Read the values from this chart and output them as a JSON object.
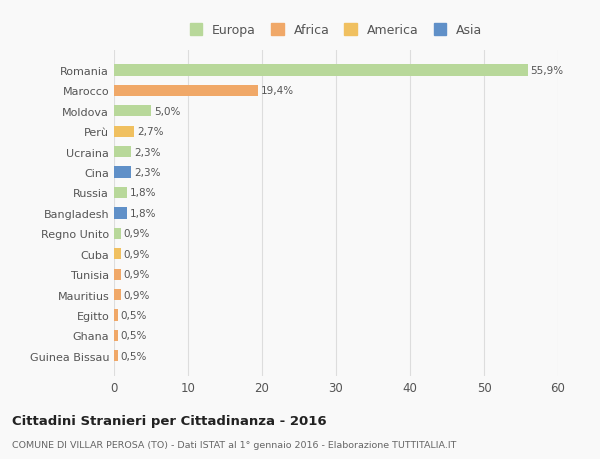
{
  "categories": [
    "Romania",
    "Marocco",
    "Moldova",
    "Perù",
    "Ucraina",
    "Cina",
    "Russia",
    "Bangladesh",
    "Regno Unito",
    "Cuba",
    "Tunisia",
    "Mauritius",
    "Egitto",
    "Ghana",
    "Guinea Bissau"
  ],
  "values": [
    55.9,
    19.4,
    5.0,
    2.7,
    2.3,
    2.3,
    1.8,
    1.8,
    0.9,
    0.9,
    0.9,
    0.9,
    0.5,
    0.5,
    0.5
  ],
  "labels": [
    "55,9%",
    "19,4%",
    "5,0%",
    "2,7%",
    "2,3%",
    "2,3%",
    "1,8%",
    "1,8%",
    "0,9%",
    "0,9%",
    "0,9%",
    "0,9%",
    "0,5%",
    "0,5%",
    "0,5%"
  ],
  "colors": [
    "#b8d89a",
    "#f0a868",
    "#b8d89a",
    "#f0c060",
    "#b8d89a",
    "#6090c8",
    "#b8d89a",
    "#6090c8",
    "#b8d89a",
    "#f0c060",
    "#f0a868",
    "#f0a868",
    "#f0a868",
    "#f0a868",
    "#f0a868"
  ],
  "legend": [
    {
      "label": "Europa",
      "color": "#b8d89a"
    },
    {
      "label": "Africa",
      "color": "#f0a868"
    },
    {
      "label": "America",
      "color": "#f0c060"
    },
    {
      "label": "Asia",
      "color": "#6090c8"
    }
  ],
  "title": "Cittadini Stranieri per Cittadinanza - 2016",
  "subtitle": "COMUNE DI VILLAR PEROSA (TO) - Dati ISTAT al 1° gennaio 2016 - Elaborazione TUTTITALIA.IT",
  "xlim": [
    0,
    60
  ],
  "xticks": [
    0,
    10,
    20,
    30,
    40,
    50,
    60
  ],
  "bg_color": "#f9f9f9",
  "grid_color": "#dddddd",
  "bar_height": 0.55
}
